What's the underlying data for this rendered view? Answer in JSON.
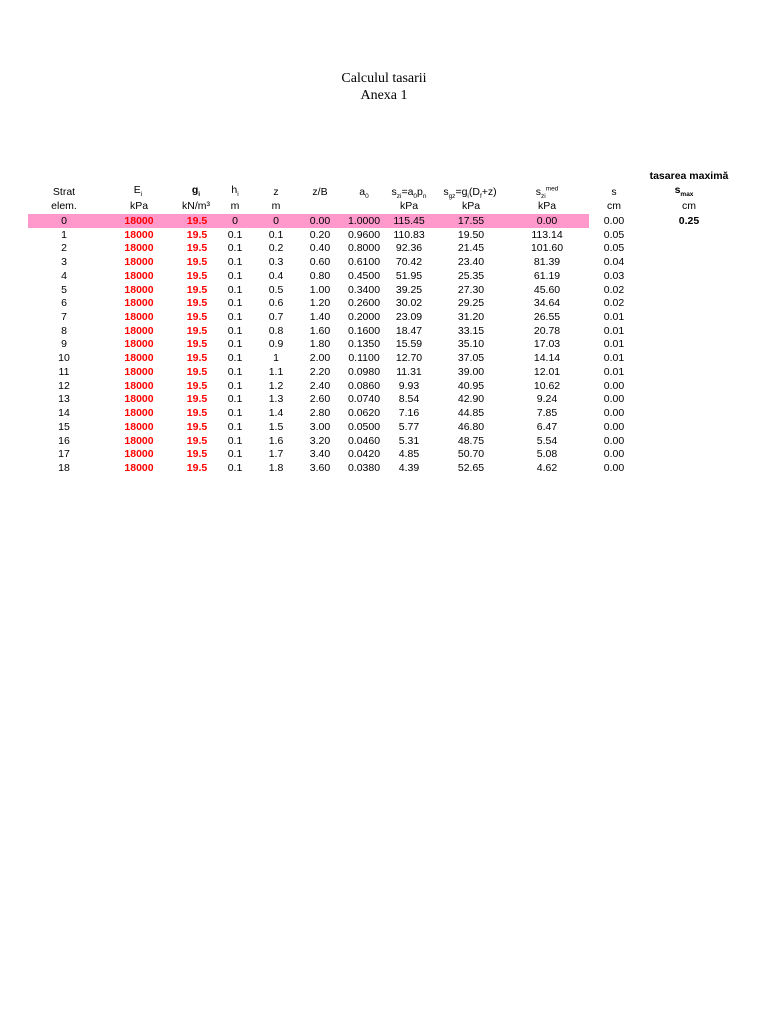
{
  "title": "Calculul tasarii",
  "subtitle": "Anexa 1",
  "header": {
    "strat": "Strat",
    "e_base": "E",
    "e_sub": "i",
    "g_base": "g",
    "g_sub": "i",
    "h_base": "h",
    "h_sub": "i",
    "z": "z",
    "zb": "z/B",
    "a_base": "a",
    "a_sub": "0",
    "szi": {
      "p1": "s",
      "s1": "zi",
      "p2": "=a",
      "s2": "0",
      "p3": "p",
      "s3": "n"
    },
    "sgz": {
      "p1": "s",
      "s1": "gz",
      "p2": "=g",
      "s2": "i",
      "p3": "(D",
      "s3": "f",
      "p4": "+z)"
    },
    "smed": {
      "p1": "s",
      "s1": "zi",
      "sup": "med"
    },
    "s": "s",
    "tas_title": "tasarea maximă",
    "smax_base": "s",
    "smax_sub": "max"
  },
  "units": {
    "strat": "elem.",
    "e": "kPa",
    "g": "kN/m³",
    "h": "m",
    "z": "m",
    "szi": "kPa",
    "sgz": "kPa",
    "smed": "kPa",
    "s": "cm",
    "smax": "cm"
  },
  "smax_value": "0.25",
  "rows": [
    [
      "0",
      "18000",
      "19.5",
      "0",
      "0",
      "0.00",
      "1.0000",
      "115.45",
      "17.55",
      "0.00",
      "0.00"
    ],
    [
      "1",
      "18000",
      "19.5",
      "0.1",
      "0.1",
      "0.20",
      "0.9600",
      "110.83",
      "19.50",
      "113.14",
      "0.05"
    ],
    [
      "2",
      "18000",
      "19.5",
      "0.1",
      "0.2",
      "0.40",
      "0.8000",
      "92.36",
      "21.45",
      "101.60",
      "0.05"
    ],
    [
      "3",
      "18000",
      "19.5",
      "0.1",
      "0.3",
      "0.60",
      "0.6100",
      "70.42",
      "23.40",
      "81.39",
      "0.04"
    ],
    [
      "4",
      "18000",
      "19.5",
      "0.1",
      "0.4",
      "0.80",
      "0.4500",
      "51.95",
      "25.35",
      "61.19",
      "0.03"
    ],
    [
      "5",
      "18000",
      "19.5",
      "0.1",
      "0.5",
      "1.00",
      "0.3400",
      "39.25",
      "27.30",
      "45.60",
      "0.02"
    ],
    [
      "6",
      "18000",
      "19.5",
      "0.1",
      "0.6",
      "1.20",
      "0.2600",
      "30.02",
      "29.25",
      "34.64",
      "0.02"
    ],
    [
      "7",
      "18000",
      "19.5",
      "0.1",
      "0.7",
      "1.40",
      "0.2000",
      "23.09",
      "31.20",
      "26.55",
      "0.01"
    ],
    [
      "8",
      "18000",
      "19.5",
      "0.1",
      "0.8",
      "1.60",
      "0.1600",
      "18.47",
      "33.15",
      "20.78",
      "0.01"
    ],
    [
      "9",
      "18000",
      "19.5",
      "0.1",
      "0.9",
      "1.80",
      "0.1350",
      "15.59",
      "35.10",
      "17.03",
      "0.01"
    ],
    [
      "10",
      "18000",
      "19.5",
      "0.1",
      "1",
      "2.00",
      "0.1100",
      "12.70",
      "37.05",
      "14.14",
      "0.01"
    ],
    [
      "11",
      "18000",
      "19.5",
      "0.1",
      "1.1",
      "2.20",
      "0.0980",
      "11.31",
      "39.00",
      "12.01",
      "0.01"
    ],
    [
      "12",
      "18000",
      "19.5",
      "0.1",
      "1.2",
      "2.40",
      "0.0860",
      "9.93",
      "40.95",
      "10.62",
      "0.00"
    ],
    [
      "13",
      "18000",
      "19.5",
      "0.1",
      "1.3",
      "2.60",
      "0.0740",
      "8.54",
      "42.90",
      "9.24",
      "0.00"
    ],
    [
      "14",
      "18000",
      "19.5",
      "0.1",
      "1.4",
      "2.80",
      "0.0620",
      "7.16",
      "44.85",
      "7.85",
      "0.00"
    ],
    [
      "15",
      "18000",
      "19.5",
      "0.1",
      "1.5",
      "3.00",
      "0.0500",
      "5.77",
      "46.80",
      "6.47",
      "0.00"
    ],
    [
      "16",
      "18000",
      "19.5",
      "0.1",
      "1.6",
      "3.20",
      "0.0460",
      "5.31",
      "48.75",
      "5.54",
      "0.00"
    ],
    [
      "17",
      "18000",
      "19.5",
      "0.1",
      "1.7",
      "3.40",
      "0.0420",
      "4.85",
      "50.70",
      "5.08",
      "0.00"
    ],
    [
      "18",
      "18000",
      "19.5",
      "0.1",
      "1.8",
      "3.60",
      "0.0380",
      "4.39",
      "52.65",
      "4.62",
      "0.00"
    ]
  ]
}
